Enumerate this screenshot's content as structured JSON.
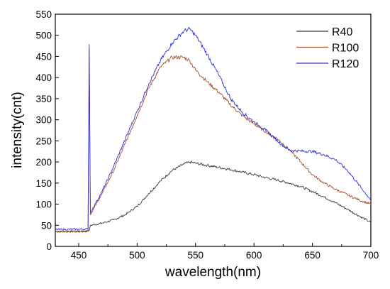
{
  "chart_data": {
    "type": "line",
    "title": "",
    "xlabel": "wavelength(nm)",
    "ylabel": "intensity(cnt)",
    "xlim": [
      430,
      700
    ],
    "ylim": [
      0,
      550
    ],
    "x_ticks": [
      450,
      500,
      550,
      600,
      650,
      700
    ],
    "y_ticks": [
      0,
      50,
      100,
      150,
      200,
      250,
      300,
      350,
      400,
      450,
      500,
      550
    ],
    "legend_position": "top-right",
    "grid": false,
    "series": [
      {
        "name": "R40",
        "color": "#3a3a3a",
        "x": [
          430,
          458,
          459,
          460,
          470,
          480,
          490,
          500,
          510,
          520,
          530,
          540,
          545,
          550,
          560,
          570,
          580,
          590,
          600,
          610,
          620,
          630,
          640,
          650,
          660,
          670,
          680,
          690,
          700
        ],
        "y": [
          35,
          36,
          38,
          50,
          55,
          63,
          75,
          95,
          125,
          155,
          180,
          195,
          200,
          197,
          192,
          187,
          182,
          176,
          170,
          163,
          157,
          150,
          142,
          130,
          117,
          103,
          88,
          72,
          57
        ]
      },
      {
        "name": "R100",
        "color": "#a0522d",
        "x": [
          430,
          458,
          459,
          460,
          470,
          480,
          490,
          500,
          510,
          520,
          530,
          540,
          545,
          550,
          560,
          570,
          580,
          590,
          600,
          610,
          620,
          630,
          640,
          650,
          660,
          670,
          680,
          690,
          700
        ],
        "y": [
          35,
          36,
          470,
          75,
          125,
          180,
          245,
          310,
          375,
          425,
          448,
          448,
          440,
          418,
          390,
          365,
          335,
          310,
          290,
          272,
          255,
          230,
          200,
          170,
          150,
          135,
          122,
          110,
          100
        ]
      },
      {
        "name": "R120",
        "color": "#3030d8",
        "x": [
          430,
          458,
          459,
          460,
          470,
          480,
          490,
          500,
          510,
          520,
          530,
          540,
          545,
          550,
          560,
          570,
          580,
          590,
          600,
          610,
          620,
          630,
          640,
          650,
          660,
          670,
          680,
          690,
          700
        ],
        "y": [
          40,
          41,
          478,
          80,
          130,
          190,
          255,
          320,
          385,
          440,
          482,
          510,
          515,
          500,
          455,
          405,
          350,
          318,
          295,
          275,
          250,
          228,
          226,
          225,
          217,
          205,
          180,
          145,
          110
        ]
      }
    ]
  }
}
